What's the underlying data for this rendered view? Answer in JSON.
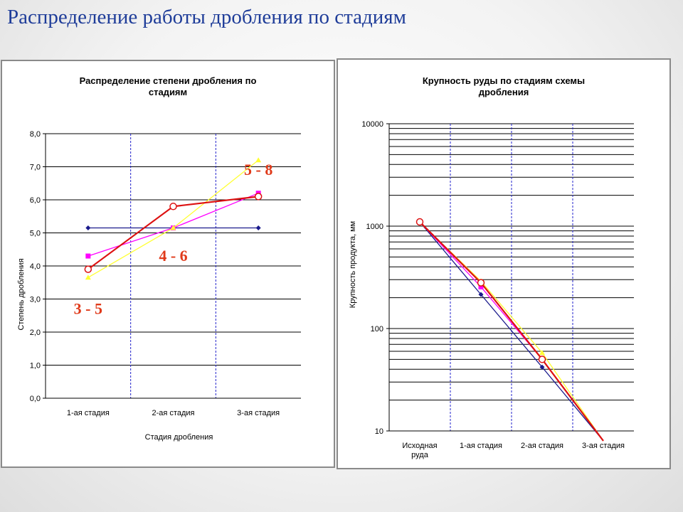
{
  "slide": {
    "title": "Распределение работы дробления по стадиям"
  },
  "chart_data": [
    {
      "type": "line",
      "title": "Распределение степени дробления по стадиям",
      "xlabel": "Стадия дробления",
      "ylabel": "Степень дробления",
      "categories": [
        "1-ая стадия",
        "2-ая стадия",
        "3-ая стадия"
      ],
      "ylim": [
        0,
        8
      ],
      "yticks": [
        "0,0",
        "1,0",
        "2,0",
        "3,0",
        "4,0",
        "5,0",
        "6,0",
        "7,0",
        "8,0"
      ],
      "grid": true,
      "legend": "none",
      "series": [
        {
          "color": "#1a1a8c",
          "marker": "diamond",
          "values": [
            5.15,
            5.15,
            5.15
          ]
        },
        {
          "color": "#ff00ff",
          "marker": "square",
          "values": [
            4.3,
            5.15,
            6.2
          ]
        },
        {
          "color": "#ffff33",
          "marker": "triangle",
          "values": [
            3.65,
            5.15,
            7.2
          ]
        },
        {
          "color": "#dd1111",
          "marker": "circle",
          "values": [
            3.9,
            5.8,
            6.1
          ]
        }
      ],
      "annotations": [
        {
          "text": "3 - 5",
          "category": 0,
          "value": 2.55
        },
        {
          "text": "4 - 6",
          "category": 1,
          "value": 4.15
        },
        {
          "text": "5 - 8",
          "category": 2,
          "value": 6.75
        }
      ]
    },
    {
      "type": "line",
      "title": "Крупность руды по стадиям схемы дробления",
      "xlabel": "",
      "ylabel": "Крупность продукта, мм",
      "categories": [
        "Исходная руда",
        "1-ая стадия",
        "2-ая стадия",
        "3-ая стадия"
      ],
      "yscale": "log",
      "ylim": [
        10,
        10000
      ],
      "yticks": [
        "10",
        "100",
        "1000",
        "10000"
      ],
      "grid": true,
      "legend": "none",
      "series": [
        {
          "color": "#1a1a8c",
          "marker": "diamond",
          "values": [
            1100,
            215,
            42,
            8
          ]
        },
        {
          "color": "#ff00ff",
          "marker": "square",
          "values": [
            1100,
            255,
            50,
            8
          ]
        },
        {
          "color": "#ffff33",
          "marker": "triangle",
          "values": [
            1100,
            290,
            58,
            8
          ]
        },
        {
          "color": "#dd1111",
          "marker": "circle",
          "values": [
            1100,
            280,
            50,
            8
          ]
        }
      ]
    }
  ]
}
